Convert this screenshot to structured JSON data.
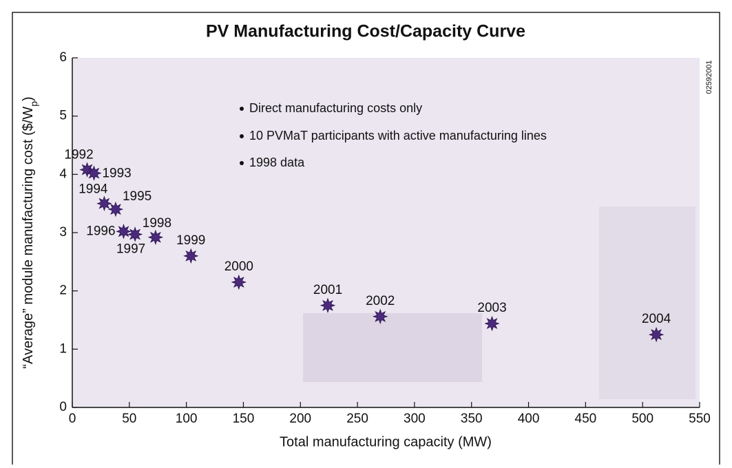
{
  "chart_data": {
    "type": "scatter",
    "title": "PV Manufacturing Cost/Capacity Curve",
    "x_label": "Total manufacturing capacity (MW)",
    "y_label": {
      "text": "“Average” module manufacturing cost ($/W",
      "sub": "p",
      "tail": ")"
    },
    "figure_id": "02592001",
    "annotations": [
      "Direct manufacturing costs only",
      "10 PVMaT participants with active manufacturing lines",
      "1998 data"
    ],
    "xlim": [
      0,
      550
    ],
    "xticks": [
      0,
      50,
      100,
      150,
      200,
      250,
      300,
      350,
      400,
      450,
      500,
      550
    ],
    "ylim": [
      0,
      6
    ],
    "yticks": [
      0,
      1,
      2,
      3,
      4,
      5,
      6
    ],
    "series": [
      {
        "color": "#4b2a7b",
        "labels": [
          "1992",
          "1993",
          "1994",
          "1995",
          "1996",
          "1997",
          "1998",
          "1999",
          "2000",
          "2001",
          "2002",
          "2003",
          "2004"
        ],
        "x": [
          13,
          19,
          28,
          38,
          45,
          55,
          73,
          104,
          146,
          224,
          270,
          368,
          512
        ],
        "values": [
          4.08,
          4.02,
          3.5,
          3.4,
          3.02,
          2.97,
          2.92,
          2.6,
          2.15,
          1.75,
          1.56,
          1.44,
          1.25
        ]
      }
    ]
  }
}
